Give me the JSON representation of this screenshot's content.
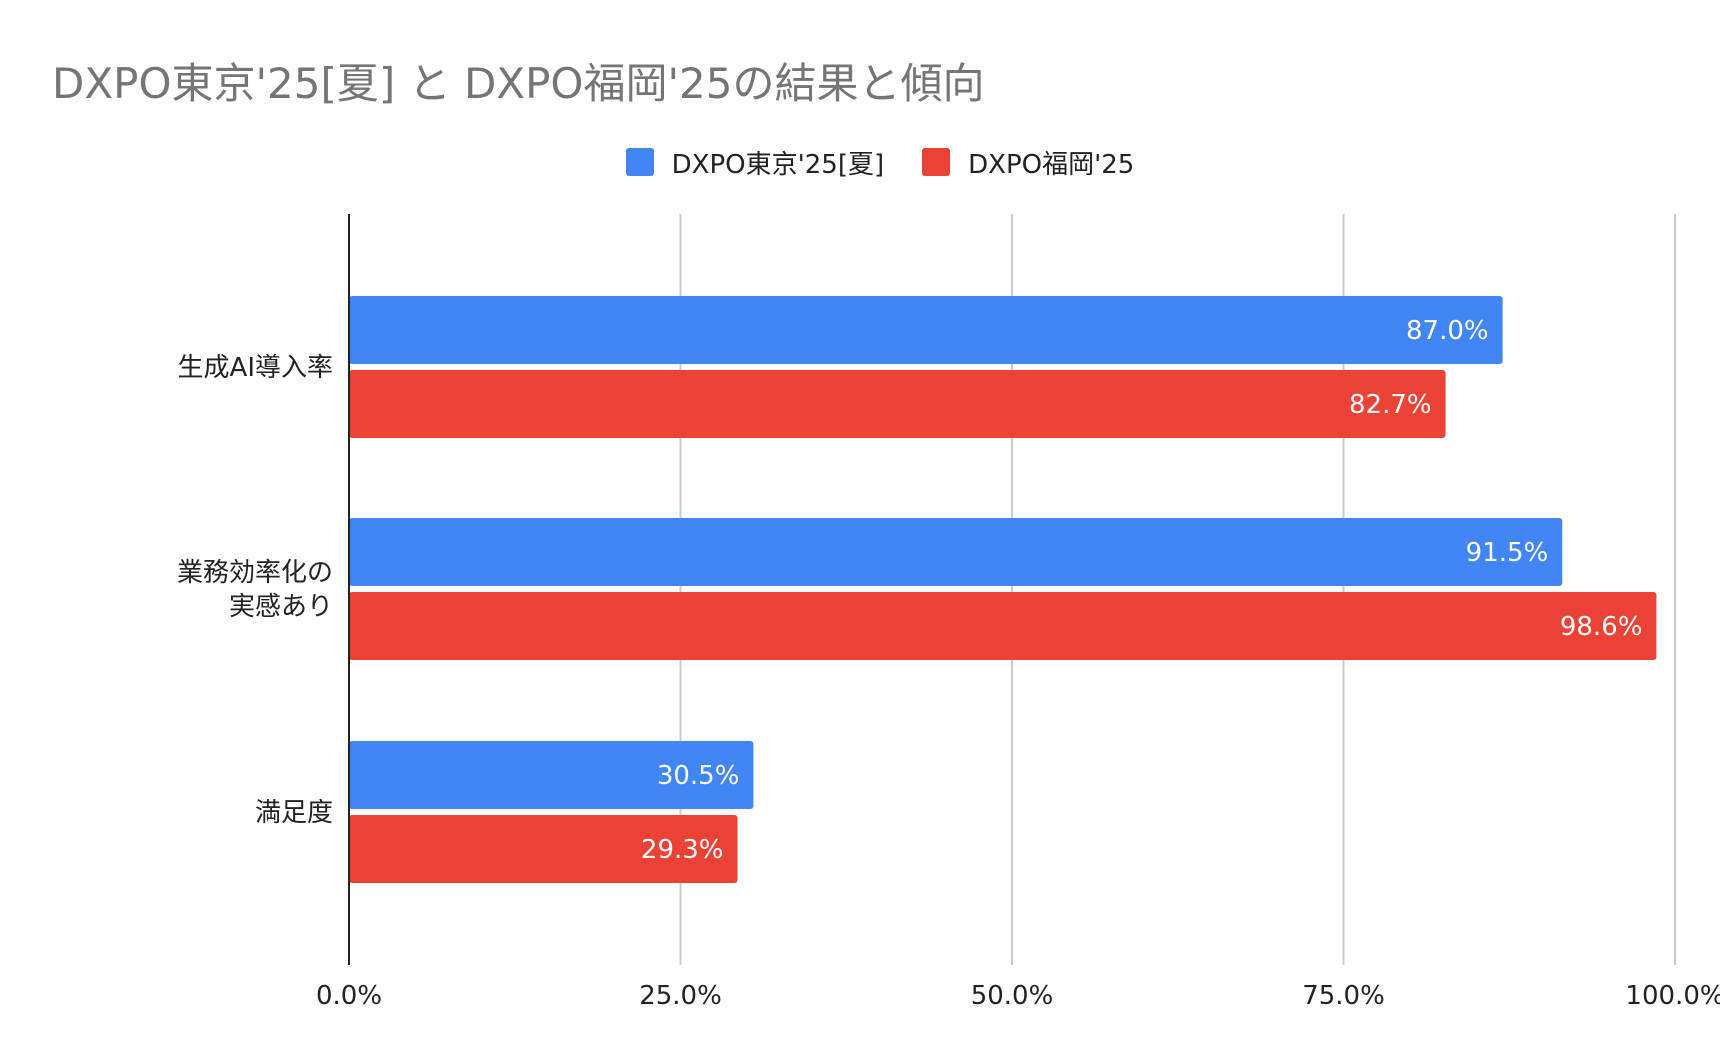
{
  "chart_data": {
    "type": "bar",
    "orientation": "horizontal",
    "title": "DXPO東京'25[夏] と DXPO福岡'25の結果と傾向",
    "categories": [
      [
        "生成AI導入率"
      ],
      [
        "業務効率化の",
        "実感あり"
      ],
      [
        "満足度"
      ]
    ],
    "series": [
      {
        "name": "DXPO東京'25[夏]",
        "color": "#4285F4",
        "values": [
          87.0,
          91.5,
          30.5
        ],
        "labels": [
          "87.0%",
          "91.5%",
          "30.5%"
        ]
      },
      {
        "name": "DXPO福岡'25",
        "color": "#EA4335",
        "values": [
          82.7,
          98.6,
          29.3
        ],
        "labels": [
          "82.7%",
          "98.6%",
          "29.3%"
        ]
      }
    ],
    "xlim": [
      0,
      100
    ],
    "xticks": [
      0,
      25,
      50,
      75,
      100
    ],
    "xtick_labels": [
      "0.0%",
      "25.0%",
      "50.0%",
      "75.0%",
      "100.0%"
    ],
    "grid": true,
    "legend_position": "top-center"
  }
}
